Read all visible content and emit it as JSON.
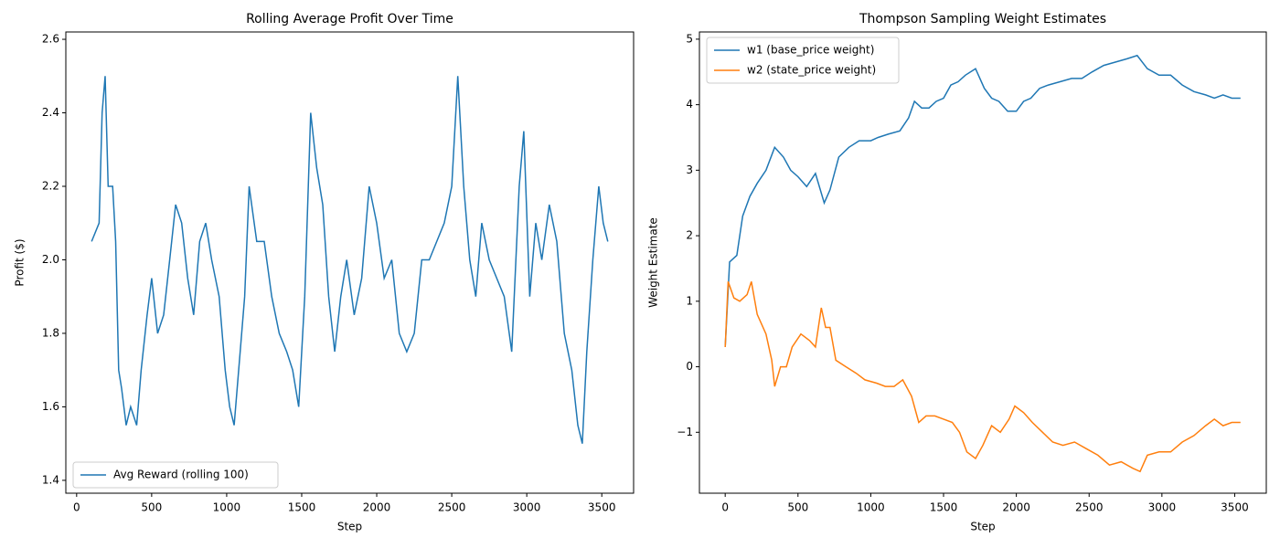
{
  "chart_data": [
    {
      "type": "line",
      "title": "Rolling Average Profit Over Time",
      "xlabel": "Step",
      "ylabel": "Profit ($)",
      "xlim": [
        -72,
        3712
      ],
      "ylim": [
        1.365,
        2.62
      ],
      "xticks": [
        0,
        500,
        1000,
        1500,
        2000,
        2500,
        3000,
        3500
      ],
      "yticks": [
        1.4,
        1.6,
        1.8,
        {
          "value": 2,
          "label": "2.0"
        },
        2.2,
        2.4,
        2.6
      ],
      "legend": "lower left",
      "grid": false,
      "series": [
        {
          "name": "Avg Reward (rolling 100)",
          "color": "#1f77b4",
          "x": [
            100,
            150,
            170,
            190,
            210,
            240,
            260,
            280,
            300,
            330,
            360,
            400,
            430,
            470,
            500,
            540,
            580,
            620,
            660,
            700,
            740,
            780,
            820,
            860,
            900,
            950,
            990,
            1020,
            1050,
            1090,
            1120,
            1150,
            1200,
            1250,
            1300,
            1350,
            1400,
            1440,
            1480,
            1520,
            1560,
            1600,
            1640,
            1680,
            1720,
            1760,
            1800,
            1850,
            1900,
            1950,
            2000,
            2050,
            2100,
            2150,
            2200,
            2250,
            2300,
            2350,
            2400,
            2450,
            2500,
            2540,
            2580,
            2620,
            2660,
            2700,
            2750,
            2800,
            2850,
            2900,
            2950,
            2980,
            3020,
            3060,
            3100,
            3150,
            3200,
            3250,
            3300,
            3340,
            3370,
            3400,
            3440,
            3480,
            3510,
            3540
          ],
          "values": [
            2.05,
            2.1,
            2.4,
            2.5,
            2.2,
            2.2,
            2.05,
            1.7,
            1.65,
            1.55,
            1.6,
            1.55,
            1.7,
            1.85,
            1.95,
            1.8,
            1.85,
            2.0,
            2.15,
            2.1,
            1.95,
            1.85,
            2.05,
            2.1,
            2.0,
            1.9,
            1.7,
            1.6,
            1.55,
            1.75,
            1.9,
            2.2,
            2.05,
            2.05,
            1.9,
            1.8,
            1.75,
            1.7,
            1.6,
            1.9,
            2.4,
            2.25,
            2.15,
            1.9,
            1.75,
            1.9,
            2.0,
            1.85,
            1.95,
            2.2,
            2.1,
            1.95,
            2.0,
            1.8,
            1.75,
            1.8,
            2.0,
            2.0,
            2.05,
            2.1,
            2.2,
            2.5,
            2.2,
            2.0,
            1.9,
            2.1,
            2.0,
            1.95,
            1.9,
            1.75,
            2.2,
            2.35,
            1.9,
            2.1,
            2.0,
            2.15,
            2.05,
            1.8,
            1.7,
            1.55,
            1.5,
            1.75,
            2.0,
            2.2,
            2.1,
            2.05
          ]
        }
      ]
    },
    {
      "type": "line",
      "title": "Thompson Sampling Weight Estimates",
      "xlabel": "Step",
      "ylabel": "Weight Estimate",
      "xlim": [
        -177,
        3717
      ],
      "ylim": [
        -1.93,
        5.11
      ],
      "xticks": [
        0,
        500,
        1000,
        1500,
        2000,
        2500,
        3000,
        3500
      ],
      "yticks": [
        {
          "value": -1,
          "label": "−1"
        },
        0,
        1,
        2,
        3,
        4,
        5
      ],
      "legend": "upper left",
      "grid": false,
      "series": [
        {
          "name": "w1 (base_price weight)",
          "color": "#1f77b4",
          "x": [
            0,
            30,
            80,
            120,
            170,
            220,
            280,
            340,
            400,
            450,
            500,
            560,
            620,
            680,
            720,
            780,
            850,
            920,
            1000,
            1050,
            1120,
            1200,
            1260,
            1300,
            1350,
            1400,
            1450,
            1500,
            1550,
            1600,
            1650,
            1720,
            1780,
            1830,
            1880,
            1940,
            2000,
            2050,
            2100,
            2160,
            2220,
            2300,
            2380,
            2450,
            2520,
            2600,
            2680,
            2760,
            2830,
            2900,
            2980,
            3060,
            3140,
            3220,
            3300,
            3360,
            3420,
            3480,
            3540
          ],
          "values": [
            0.3,
            1.6,
            1.7,
            2.3,
            2.6,
            2.8,
            3.0,
            3.35,
            3.2,
            3.0,
            2.9,
            2.75,
            2.95,
            2.5,
            2.7,
            3.2,
            3.35,
            3.45,
            3.45,
            3.5,
            3.55,
            3.6,
            3.8,
            4.05,
            3.95,
            3.95,
            4.05,
            4.1,
            4.3,
            4.35,
            4.45,
            4.55,
            4.25,
            4.1,
            4.05,
            3.9,
            3.9,
            4.05,
            4.1,
            4.25,
            4.3,
            4.35,
            4.4,
            4.4,
            4.5,
            4.6,
            4.65,
            4.7,
            4.75,
            4.55,
            4.45,
            4.45,
            4.3,
            4.2,
            4.15,
            4.1,
            4.15,
            4.1,
            4.1
          ]
        },
        {
          "name": "w2 (state_price weight)",
          "color": "#ff7f0e",
          "x": [
            0,
            20,
            60,
            100,
            150,
            180,
            220,
            280,
            320,
            340,
            380,
            420,
            460,
            520,
            580,
            620,
            660,
            690,
            720,
            760,
            830,
            900,
            960,
            1040,
            1100,
            1160,
            1220,
            1280,
            1330,
            1380,
            1440,
            1500,
            1560,
            1610,
            1660,
            1720,
            1770,
            1830,
            1890,
            1950,
            1990,
            2050,
            2110,
            2180,
            2250,
            2320,
            2400,
            2480,
            2560,
            2640,
            2720,
            2800,
            2850,
            2900,
            2980,
            3060,
            3140,
            3220,
            3300,
            3360,
            3420,
            3480,
            3540
          ],
          "values": [
            0.3,
            1.3,
            1.05,
            1.0,
            1.1,
            1.3,
            0.8,
            0.5,
            0.1,
            -0.3,
            0.0,
            0.0,
            0.3,
            0.5,
            0.4,
            0.3,
            0.9,
            0.6,
            0.6,
            0.1,
            0.0,
            -0.1,
            -0.2,
            -0.25,
            -0.3,
            -0.3,
            -0.2,
            -0.45,
            -0.85,
            -0.75,
            -0.75,
            -0.8,
            -0.85,
            -1.0,
            -1.3,
            -1.4,
            -1.2,
            -0.9,
            -1.0,
            -0.8,
            -0.6,
            -0.7,
            -0.85,
            -1.0,
            -1.15,
            -1.2,
            -1.15,
            -1.25,
            -1.35,
            -1.5,
            -1.45,
            -1.55,
            -1.6,
            -1.35,
            -1.3,
            -1.3,
            -1.15,
            -1.05,
            -0.9,
            -0.8,
            -0.9,
            -0.85,
            -0.85
          ]
        }
      ]
    }
  ]
}
